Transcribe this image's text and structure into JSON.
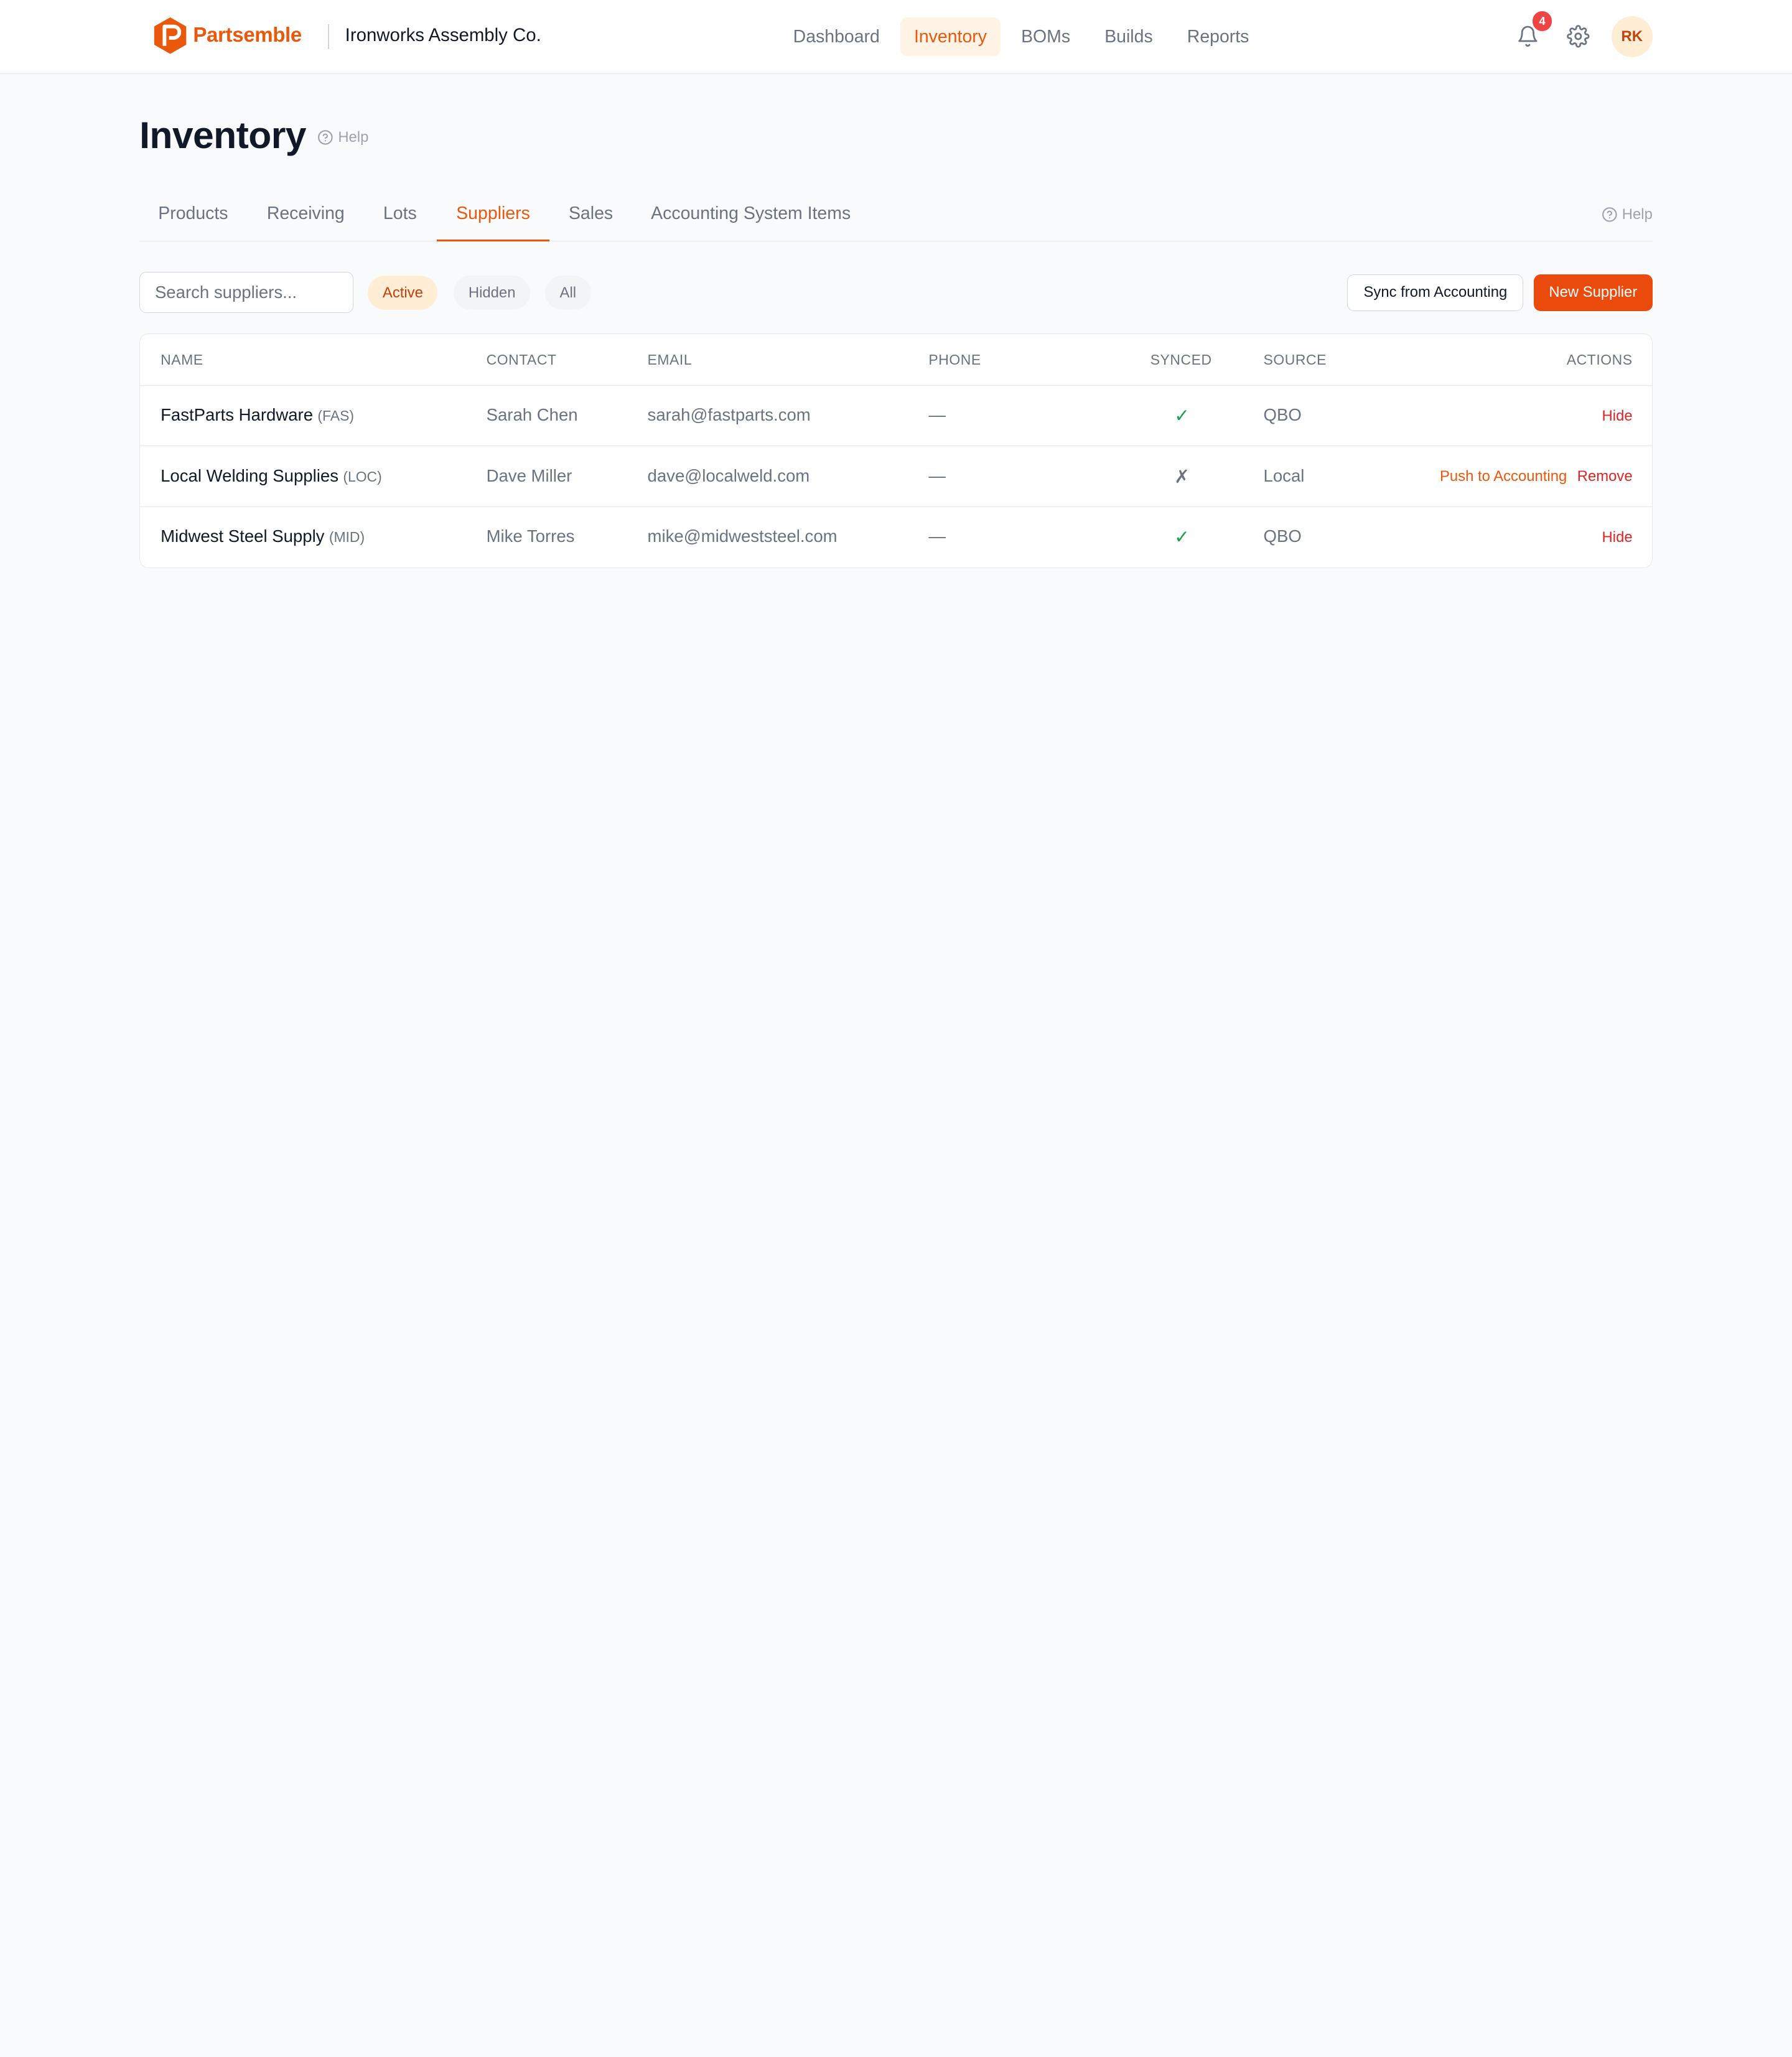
{
  "header": {
    "brand": "Partsemble",
    "company": "Ironworks Assembly Co.",
    "nav": [
      {
        "label": "Dashboard",
        "active": false
      },
      {
        "label": "Inventory",
        "active": true
      },
      {
        "label": "BOMs",
        "active": false
      },
      {
        "label": "Builds",
        "active": false
      },
      {
        "label": "Reports",
        "active": false
      }
    ],
    "notifications_count": "4",
    "avatar_initials": "RK",
    "icons": [
      "bell-icon",
      "gear-icon"
    ]
  },
  "page": {
    "title": "Inventory",
    "help_label": "Help"
  },
  "tabs": {
    "items": [
      {
        "label": "Products",
        "active": false
      },
      {
        "label": "Receiving",
        "active": false
      },
      {
        "label": "Lots",
        "active": false
      },
      {
        "label": "Suppliers",
        "active": true
      },
      {
        "label": "Sales",
        "active": false
      },
      {
        "label": "Accounting System Items",
        "active": false
      }
    ],
    "help_label": "Help"
  },
  "toolbar": {
    "search_placeholder": "Search suppliers...",
    "search_value": "",
    "filters": [
      {
        "label": "Active",
        "active": true
      },
      {
        "label": "Hidden",
        "active": false
      },
      {
        "label": "All",
        "active": false
      }
    ],
    "sync_label": "Sync from Accounting",
    "new_label": "New Supplier"
  },
  "table": {
    "columns": [
      "NAME",
      "CONTACT",
      "EMAIL",
      "PHONE",
      "SYNCED",
      "SOURCE",
      "ACTIONS"
    ],
    "rows": [
      {
        "name": "FastParts Hardware",
        "code": "(FAS)",
        "contact": "Sarah Chen",
        "email": "sarah@fastparts.com",
        "phone": "—",
        "synced": "✓",
        "source": "QBO",
        "actions": [
          {
            "label": "Hide",
            "tone": "red"
          }
        ]
      },
      {
        "name": "Local Welding Supplies",
        "code": "(LOC)",
        "contact": "Dave Miller",
        "email": "dave@localweld.com",
        "phone": "—",
        "synced": "✗",
        "source": "Local",
        "actions": [
          {
            "label": "Push to Accounting",
            "tone": "orange"
          },
          {
            "label": "Remove",
            "tone": "red"
          }
        ]
      },
      {
        "name": "Midwest Steel Supply",
        "code": "(MID)",
        "contact": "Mike Torres",
        "email": "mike@midweststeel.com",
        "phone": "—",
        "synced": "✓",
        "source": "QBO",
        "actions": [
          {
            "label": "Hide",
            "tone": "red"
          }
        ]
      }
    ]
  },
  "colors": {
    "accent": "#ea580c",
    "primary_button": "#ea4b0c",
    "danger": "#dc2626",
    "success": "#16a34a"
  }
}
